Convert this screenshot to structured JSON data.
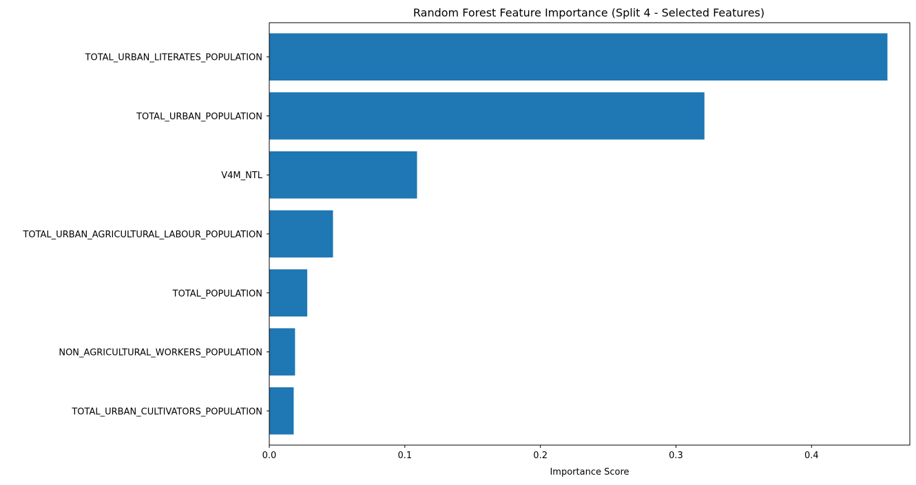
{
  "chart_data": {
    "type": "bar",
    "orientation": "horizontal",
    "title": "Random Forest Feature Importance (Split 4 - Selected Features)",
    "xlabel": "Importance Score",
    "ylabel": "",
    "xlim": [
      0,
      0.4725
    ],
    "x_ticks": [
      0.0,
      0.1,
      0.2,
      0.3,
      0.4
    ],
    "x_tick_labels": [
      "0.0",
      "0.1",
      "0.2",
      "0.3",
      "0.4"
    ],
    "grid": false,
    "bar_color": "#1f77b4",
    "categories": [
      "TOTAL_URBAN_LITERATES_POPULATION",
      "TOTAL_URBAN_POPULATION",
      "V4M_NTL",
      "TOTAL_URBAN_AGRICULTURAL_LABOUR_POPULATION",
      "TOTAL_POPULATION",
      "NON_AGRICULTURAL_WORKERS_POPULATION",
      "TOTAL_URBAN_CULTIVATORS_POPULATION"
    ],
    "values": [
      0.456,
      0.321,
      0.109,
      0.047,
      0.028,
      0.019,
      0.018
    ]
  }
}
